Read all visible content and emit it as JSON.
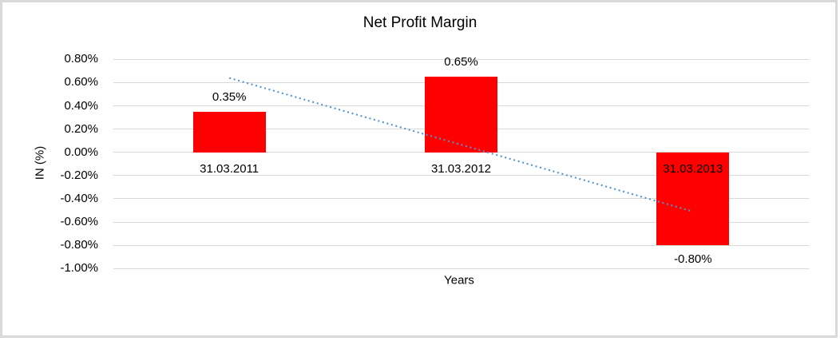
{
  "frame_color": "#d9d9d9",
  "background_color": "#ffffff",
  "chart_data": {
    "type": "bar",
    "title": "Net Profit Margin",
    "xlabel": "Years",
    "ylabel": "IN (%)",
    "categories": [
      "31.03.2011",
      "31.03.2012",
      "31.03.2013"
    ],
    "series": [
      {
        "name": "Net Profit Margin",
        "values": [
          0.35,
          0.65,
          -0.8
        ]
      }
    ],
    "value_labels": [
      "0.35%",
      "0.65%",
      "-0.80%"
    ],
    "y_ticks": [
      {
        "label": "0.80%",
        "value": 0.8
      },
      {
        "label": "0.60%",
        "value": 0.6
      },
      {
        "label": "0.40%",
        "value": 0.4
      },
      {
        "label": "0.20%",
        "value": 0.2
      },
      {
        "label": "0.00%",
        "value": 0.0
      },
      {
        "label": "-0.20%",
        "value": -0.2
      },
      {
        "label": "-0.40%",
        "value": -0.4
      },
      {
        "label": "-0.60%",
        "value": -0.6
      },
      {
        "label": "-0.80%",
        "value": -0.8
      },
      {
        "label": "-1.00%",
        "value": -1.0
      }
    ],
    "ylim": [
      -1.0,
      0.8
    ],
    "grid": true,
    "legend": "none",
    "bar_color": "#ff0000",
    "gridline_color": "#d9d9d9",
    "text_color": "#000000",
    "trendline": {
      "style": "dotted",
      "color": "#4e95d6",
      "start_value": 0.64,
      "end_value": -0.51
    }
  }
}
